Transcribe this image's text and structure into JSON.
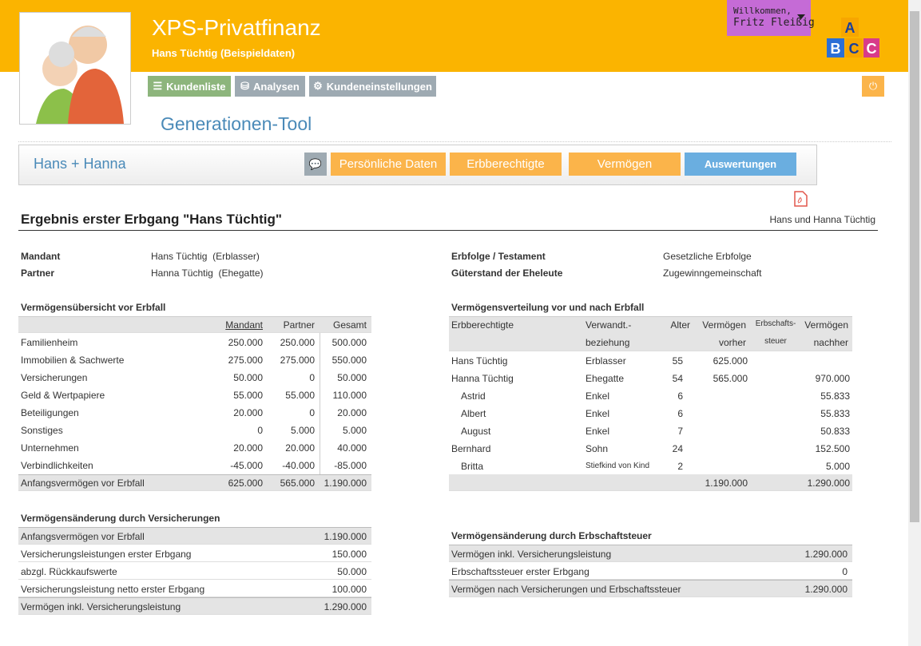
{
  "header": {
    "title": "XPS-Privatfinanz",
    "subtitle": "Hans Tüchtig (Beispieldaten)",
    "user_greeting": "Willkommen,",
    "user_name": "Fritz Fleißig"
  },
  "nav": [
    "Kundenliste",
    "Analysen",
    "Kundeneinstellungen"
  ],
  "page_title": "Generationen-Tool",
  "panel": {
    "name": "Hans + Hanna",
    "tabs": [
      "Persönliche Daten",
      "Erbberechtigte",
      "Vermögen",
      "Auswertungen"
    ]
  },
  "pdf_label": "Hans und Hanna Tüchtig",
  "result": {
    "heading": "Ergebnis erster Erbgang \"Hans Tüchtig\"",
    "info": [
      {
        "label": "Mandant",
        "value": "Hans Tüchtig  (Erblasser)"
      },
      {
        "label": "Partner",
        "value": "Hanna Tüchtig  (Ehegatte)"
      },
      {
        "label": "Erbfolge / Testament",
        "value": "Gesetzliche Erbfolge"
      },
      {
        "label": "Güterstand der Eheleute",
        "value": "Zugewinngemeinschaft"
      }
    ]
  },
  "assets": {
    "title": "Vermögensübersicht vor Erbfall",
    "columns": [
      "Mandant",
      "Partner",
      "Gesamt"
    ],
    "rows": [
      {
        "label": "Familienheim",
        "values": [
          "250.000",
          "250.000",
          "500.000"
        ]
      },
      {
        "label": "Immobilien & Sachwerte",
        "values": [
          "275.000",
          "275.000",
          "550.000"
        ]
      },
      {
        "label": "Versicherungen",
        "values": [
          "50.000",
          "0",
          "50.000"
        ]
      },
      {
        "label": "Geld & Wertpapiere",
        "values": [
          "55.000",
          "55.000",
          "110.000"
        ]
      },
      {
        "label": "Beteiligungen",
        "values": [
          "20.000",
          "0",
          "20.000"
        ]
      },
      {
        "label": "Sonstiges",
        "values": [
          "0",
          "5.000",
          "5.000"
        ]
      },
      {
        "label": "Unternehmen",
        "values": [
          "20.000",
          "20.000",
          "40.000"
        ]
      },
      {
        "label": "Verbindlichkeiten",
        "values": [
          "-45.000",
          "-40.000",
          "-85.000"
        ]
      }
    ],
    "footer": {
      "label": "Anfangsvermögen vor Erbfall",
      "values": [
        "625.000",
        "565.000",
        "1.190.000"
      ]
    }
  },
  "distribution": {
    "title": "Vermögensverteilung vor und nach Erbfall",
    "columns": [
      {
        "lines": [
          "Erbberechtigte"
        ]
      },
      {
        "lines": [
          "Verwandt.-",
          "beziehung"
        ]
      },
      {
        "lines": [
          "Alter"
        ]
      },
      {
        "lines": [
          "Vermögen",
          "vorher"
        ]
      },
      {
        "lines": [
          "Erbschafts-",
          "steuer"
        ]
      },
      {
        "lines": [
          "Vermögen",
          "nachher"
        ]
      }
    ],
    "rows": [
      {
        "name": "Hans Tüchtig",
        "relation": "Erblasser",
        "age": "55",
        "before": "625.000"
      },
      {
        "name": "Hanna Tüchtig",
        "relation": "Ehegatte",
        "age": "54",
        "before": "565.000",
        "after": "970.000"
      },
      {
        "name": "Astrid",
        "indent": true,
        "relation": "Enkel",
        "age": "6",
        "after": "55.833"
      },
      {
        "name": "Albert",
        "indent": true,
        "relation": "Enkel",
        "age": "6",
        "after": "55.833"
      },
      {
        "name": "August",
        "indent": true,
        "relation": "Enkel",
        "age": "7",
        "after": "50.833"
      },
      {
        "name": "Bernhard",
        "relation": "Sohn",
        "age": "24",
        "after": "152.500"
      },
      {
        "name": "Britta",
        "indent": true,
        "relation": "Stiefkind von Kind",
        "small": true,
        "age": "2",
        "after": "5.000"
      }
    ],
    "footer": {
      "before": "1.190.000",
      "after": "1.290.000"
    }
  },
  "insurance_change": {
    "title": "Vermögensänderung durch Versicherungen",
    "rows": [
      {
        "label": "Anfangsvermögen vor Erbfall",
        "value": "1.190.000",
        "shaded": true
      },
      {
        "label": "Versicherungsleistungen erster Erbgang",
        "value": "150.000"
      },
      {
        "label": "abzgl. Rückkaufswerte",
        "value": "50.000"
      },
      {
        "label": "Versicherungsleistung netto erster Erbgang",
        "value": "100.000"
      },
      {
        "label": "Vermögen inkl. Versicherungsleistung",
        "value": "1.290.000",
        "shaded": true
      }
    ]
  },
  "tax_change": {
    "title": "Vermögensänderung durch Erbschaftsteuer",
    "rows": [
      {
        "label": "Vermögen inkl. Versicherungsleistung",
        "value": "1.290.000",
        "shaded": true
      },
      {
        "label": "Erbschaftssteuer erster Erbgang",
        "value": "0"
      },
      {
        "label": "Vermögen nach Versicherungen und Erbschaftssteuer",
        "value": "1.290.000",
        "shaded": true
      }
    ]
  }
}
